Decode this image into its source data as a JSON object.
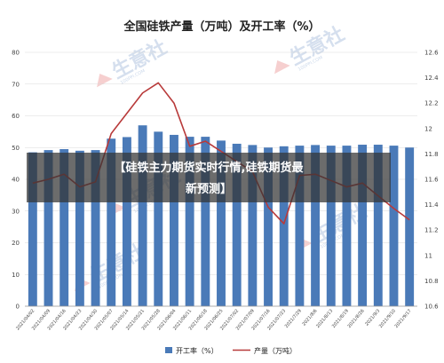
{
  "chart_data": {
    "type": "bar",
    "title": "全国硅铁产量（万吨）及开工率（%）",
    "categories": [
      "2021/04/02",
      "2021/04/09",
      "2021/04/16",
      "2021/04/23",
      "2021/04/30",
      "2021/05/07",
      "2021/05/14",
      "2021/05/21",
      "2021/05/28",
      "2021/06/04",
      "2021/06/11",
      "2021/06/18",
      "2021/06/25",
      "2021/07/02",
      "2021/07/09",
      "2021/07/16",
      "2021/07/23",
      "2021/7/29",
      "2021/8/6",
      "2021/8/13",
      "2021/8/19",
      "2021/8/26",
      "2021/9/3",
      "2021/9/10",
      "2021/9/17"
    ],
    "series": [
      {
        "name": "开工率（%）",
        "axis": "left",
        "type": "bar",
        "values": [
          48.5,
          49.2,
          49.5,
          49.0,
          49.2,
          52.8,
          53.3,
          57.0,
          55.0,
          54.0,
          53.4,
          53.4,
          52.2,
          51.2,
          50.8,
          50.0,
          50.4,
          50.6,
          50.8,
          50.6,
          50.6,
          50.9,
          50.9,
          50.6,
          50.0
        ]
      },
      {
        "name": "产量（万吨）",
        "axis": "right",
        "type": "line",
        "color": "#b83a3a",
        "values": [
          11.57,
          11.6,
          11.64,
          11.54,
          11.58,
          11.96,
          12.12,
          12.28,
          12.36,
          12.2,
          11.86,
          11.9,
          11.82,
          11.74,
          11.66,
          11.38,
          11.25,
          11.63,
          11.64,
          11.59,
          11.54,
          11.57,
          11.47,
          11.37,
          11.28
        ]
      }
    ],
    "yleft": {
      "ylim": [
        0,
        80
      ],
      "ticks": [
        "0",
        "10",
        "20",
        "30",
        "40",
        "50",
        "60",
        "70",
        "80"
      ]
    },
    "yright": {
      "ylim": [
        10.6,
        12.6
      ],
      "ticks": [
        "10.6",
        "10.8",
        "11",
        "11.2",
        "11.4",
        "11.6",
        "11.8",
        "12",
        "12.2",
        "12.4",
        "12.6"
      ]
    },
    "bar_color": "#4a7ab8",
    "grid": true,
    "legend_placement": "bottom"
  },
  "overlay": {
    "line1": "【硅铁主力期货实时行情,硅铁期货最",
    "line2": "新预测】"
  },
  "watermark": {
    "text": "生意社",
    "sub": "100PPI.COM"
  }
}
